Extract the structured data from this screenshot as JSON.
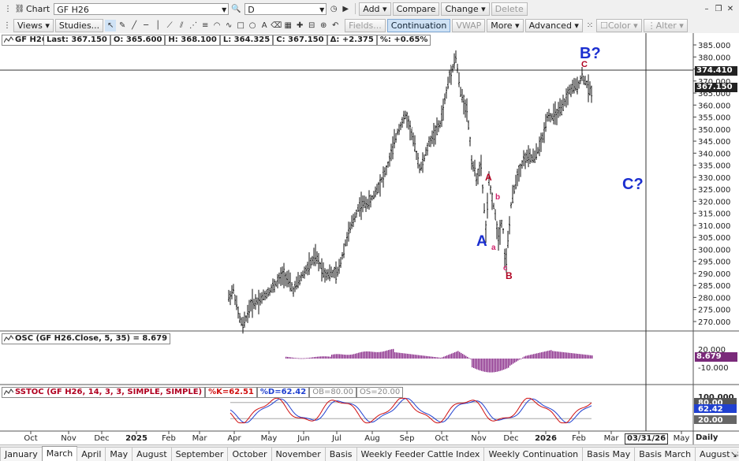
{
  "toolbar": {
    "window_title": "Chart",
    "symbol_value": "GF H26",
    "period_value": "D",
    "add_label": "Add",
    "compare_label": "Compare",
    "change_label": "Change",
    "delete_label": "Delete",
    "views_label": "Views",
    "studies_label": "Studies...",
    "fields_label": "Fields...",
    "continuation_label": "Continuation",
    "vwap_label": "VWAP",
    "more_label": "More",
    "advanced_label": "Advanced",
    "color_label": "Color",
    "alter_label": "Alter"
  },
  "quote_header": {
    "symbol": "GF H26",
    "last": "Last: 367.150",
    "open": "O: 365.600",
    "high": "H: 368.100",
    "low": "L: 364.325",
    "close": "C: 367.150",
    "change": "Δ: +2.375",
    "pct": "%: +0.65%"
  },
  "price_axis": {
    "ticks": [
      "385.000",
      "380.000",
      "375.000",
      "370.000",
      "365.000",
      "360.000",
      "355.000",
      "350.000",
      "345.000",
      "340.000",
      "335.000",
      "330.000",
      "325.000",
      "320.000",
      "315.000",
      "310.000",
      "305.000",
      "300.000",
      "295.000",
      "290.000",
      "285.000",
      "280.000",
      "275.000",
      "270.000"
    ],
    "crosshair_label": "374.410",
    "last_label": "367.150"
  },
  "annotations": {
    "wave_A_big": "A",
    "wave_B_big": "B?",
    "wave_C_big": "C?",
    "sub_A": "A",
    "sub_b": "b",
    "sub_a": "a",
    "sub_c_low": "c",
    "sub_B": "B",
    "sub_c_top": "C"
  },
  "osc_panel": {
    "label": "OSC (GF H26.Close, 5, 35) = 8.679",
    "ticks": [
      "20.000",
      "-10.000"
    ],
    "value_label": "8.679"
  },
  "sstoc_panel": {
    "label_main": "SSTOC (GF H26, 14, 3, 3, SIMPLE, SIMPLE)",
    "k_label": "%K=62.51",
    "d_label": "%D=62.42",
    "ob_label": "OB=80.00",
    "os_label": "OS=20.00",
    "ticks": [
      "100.000",
      "80.00",
      "62.42",
      "20.00"
    ]
  },
  "time_axis": {
    "labels": [
      "Oct",
      "Nov",
      "Dec",
      "2025",
      "Feb",
      "Mar",
      "Apr",
      "May",
      "Jun",
      "Jul",
      "Aug",
      "Sep",
      "Oct",
      "Nov",
      "Dec",
      "2026",
      "Feb",
      "Mar",
      "May"
    ],
    "cursor_date": "03/31/26",
    "interval": "Daily"
  },
  "tabs": [
    "January",
    "March",
    "April",
    "May",
    "August",
    "September",
    "October",
    "November",
    "Basis",
    "Weekly Feeder Cattle Index",
    "Weekly Continuation",
    "Basis May",
    "Basis March",
    "August Basis",
    "Basis Se"
  ],
  "active_tab": "March",
  "colors": {
    "wave_blue": "#1b2fd0",
    "wave_red": "#b00020",
    "osc_purple": "#8a2d8a",
    "stoch_k": "#d01010",
    "stoch_d": "#2040d0"
  }
}
